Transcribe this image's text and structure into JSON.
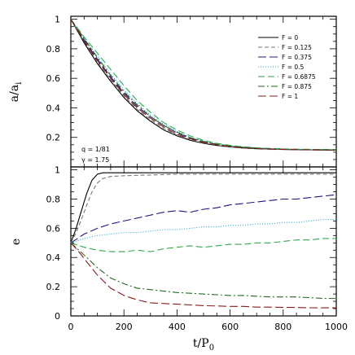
{
  "chart_data": [
    {
      "type": "line",
      "panel": "top",
      "ylabel": "a/a_i",
      "xlabel": "",
      "xlim": [
        0,
        1000
      ],
      "ylim": [
        0,
        1.02
      ],
      "yticks": [
        "0.2",
        "0.4",
        "0.6",
        "0.8",
        "1"
      ],
      "ytick_values": [
        0.2,
        0.4,
        0.6,
        0.8,
        1.0
      ],
      "annotations": [
        "q = 1/81",
        "γ = 1.75"
      ],
      "legend_position": "top-right",
      "series": [
        {
          "name": "F = 0",
          "color": "#000000",
          "dash": "solid",
          "x": [
            0,
            50,
            100,
            150,
            200,
            250,
            300,
            350,
            400,
            450,
            500,
            550,
            600,
            650,
            700,
            750,
            800,
            850,
            900,
            950,
            1000
          ],
          "y": [
            1.0,
            0.84,
            0.7,
            0.58,
            0.47,
            0.38,
            0.31,
            0.25,
            0.21,
            0.18,
            0.16,
            0.145,
            0.135,
            0.128,
            0.123,
            0.12,
            0.118,
            0.116,
            0.115,
            0.114,
            0.113
          ]
        },
        {
          "name": "F = 0.125",
          "color": "#777777",
          "dash": "5,3",
          "x": [
            0,
            50,
            100,
            150,
            200,
            250,
            300,
            350,
            400,
            450,
            500,
            550,
            600,
            650,
            700,
            750,
            800,
            850,
            900,
            950,
            1000
          ],
          "y": [
            1.0,
            0.85,
            0.71,
            0.59,
            0.48,
            0.39,
            0.32,
            0.26,
            0.215,
            0.185,
            0.163,
            0.147,
            0.136,
            0.129,
            0.124,
            0.121,
            0.119,
            0.117,
            0.116,
            0.115,
            0.114
          ]
        },
        {
          "name": "F = 0.375",
          "color": "#1a1a80",
          "dash": "10,4",
          "x": [
            0,
            50,
            100,
            150,
            200,
            250,
            300,
            350,
            400,
            450,
            500,
            550,
            600,
            650,
            700,
            750,
            800,
            850,
            900,
            950,
            1000
          ],
          "y": [
            1.0,
            0.86,
            0.73,
            0.61,
            0.5,
            0.41,
            0.34,
            0.28,
            0.23,
            0.195,
            0.17,
            0.152,
            0.14,
            0.132,
            0.126,
            0.122,
            0.12,
            0.118,
            0.117,
            0.116,
            0.115
          ]
        },
        {
          "name": "F = 0.5",
          "color": "#22a8c8",
          "dash": "1,2",
          "x": [
            0,
            50,
            100,
            150,
            200,
            250,
            300,
            350,
            400,
            450,
            500,
            550,
            600,
            650,
            700,
            750,
            800,
            850,
            900,
            950,
            1000
          ],
          "y": [
            1.0,
            0.87,
            0.75,
            0.63,
            0.52,
            0.43,
            0.35,
            0.29,
            0.24,
            0.2,
            0.175,
            0.156,
            0.143,
            0.134,
            0.128,
            0.124,
            0.121,
            0.119,
            0.118,
            0.117,
            0.116
          ]
        },
        {
          "name": "F = 0.6875",
          "color": "#2ea84a",
          "dash": "8,4",
          "x": [
            0,
            50,
            100,
            150,
            200,
            250,
            300,
            350,
            400,
            450,
            500,
            550,
            600,
            650,
            700,
            750,
            800,
            850,
            900,
            950,
            1000
          ],
          "y": [
            1.0,
            0.88,
            0.77,
            0.66,
            0.55,
            0.45,
            0.37,
            0.3,
            0.25,
            0.21,
            0.18,
            0.16,
            0.146,
            0.136,
            0.129,
            0.125,
            0.122,
            0.12,
            0.119,
            0.118,
            0.117
          ]
        },
        {
          "name": "F = 0.875",
          "color": "#1f6b1f",
          "dash": "8,3,2,3",
          "x": [
            0,
            50,
            100,
            150,
            200,
            250,
            300,
            350,
            400,
            450,
            500,
            550,
            600,
            650,
            700,
            750,
            800,
            850,
            900,
            950,
            1000
          ],
          "y": [
            1.0,
            0.87,
            0.74,
            0.62,
            0.51,
            0.42,
            0.34,
            0.28,
            0.235,
            0.198,
            0.172,
            0.154,
            0.141,
            0.133,
            0.127,
            0.123,
            0.12,
            0.118,
            0.117,
            0.116,
            0.115
          ]
        },
        {
          "name": "F = 1",
          "color": "#8b1a1a",
          "dash": "10,4",
          "x": [
            0,
            50,
            100,
            150,
            200,
            250,
            300,
            350,
            400,
            450,
            500,
            550,
            600,
            650,
            700,
            750,
            800,
            850,
            900,
            950,
            1000
          ],
          "y": [
            1.0,
            0.85,
            0.72,
            0.6,
            0.49,
            0.4,
            0.33,
            0.27,
            0.22,
            0.19,
            0.166,
            0.15,
            0.138,
            0.13,
            0.125,
            0.121,
            0.119,
            0.117,
            0.116,
            0.115,
            0.114
          ]
        }
      ]
    },
    {
      "type": "line",
      "panel": "bottom",
      "ylabel": "e",
      "xlabel": "t/P_0",
      "xlim": [
        0,
        1000
      ],
      "ylim": [
        0,
        1.02
      ],
      "xticks": [
        "0",
        "200",
        "400",
        "600",
        "800",
        "1000"
      ],
      "xtick_values": [
        0,
        200,
        400,
        600,
        800,
        1000
      ],
      "yticks": [
        "0",
        "0.2",
        "0.4",
        "0.6",
        "0.8",
        "1"
      ],
      "ytick_values": [
        0,
        0.2,
        0.4,
        0.6,
        0.8,
        1.0
      ],
      "series": [
        {
          "name": "F = 0",
          "color": "#000000",
          "dash": "solid",
          "x": [
            0,
            20,
            40,
            60,
            80,
            100,
            120,
            150,
            200,
            300,
            400,
            500,
            600,
            700,
            800,
            900,
            1000
          ],
          "y": [
            0.5,
            0.6,
            0.72,
            0.84,
            0.93,
            0.97,
            0.98,
            0.98,
            0.98,
            0.98,
            0.98,
            0.98,
            0.98,
            0.98,
            0.98,
            0.98,
            0.98
          ]
        },
        {
          "name": "F = 0.125",
          "color": "#777777",
          "dash": "5,3",
          "x": [
            0,
            20,
            40,
            60,
            80,
            100,
            120,
            150,
            200,
            300,
            400,
            500,
            600,
            700,
            800,
            900,
            1000
          ],
          "y": [
            0.5,
            0.57,
            0.66,
            0.76,
            0.85,
            0.91,
            0.94,
            0.955,
            0.96,
            0.965,
            0.97,
            0.97,
            0.97,
            0.97,
            0.97,
            0.97,
            0.97
          ]
        },
        {
          "name": "F = 0.375",
          "color": "#1a1a80",
          "dash": "10,4",
          "x": [
            0,
            50,
            100,
            150,
            200,
            250,
            300,
            350,
            400,
            450,
            500,
            550,
            600,
            650,
            700,
            750,
            800,
            850,
            900,
            950,
            1000
          ],
          "y": [
            0.5,
            0.56,
            0.6,
            0.63,
            0.65,
            0.67,
            0.69,
            0.71,
            0.72,
            0.71,
            0.73,
            0.74,
            0.76,
            0.77,
            0.78,
            0.79,
            0.8,
            0.8,
            0.81,
            0.82,
            0.83
          ]
        },
        {
          "name": "F = 0.5",
          "color": "#22a8c8",
          "dash": "1,2",
          "x": [
            0,
            50,
            100,
            150,
            200,
            250,
            300,
            350,
            400,
            450,
            500,
            550,
            600,
            650,
            700,
            750,
            800,
            850,
            900,
            950,
            1000
          ],
          "y": [
            0.5,
            0.53,
            0.55,
            0.56,
            0.57,
            0.57,
            0.58,
            0.59,
            0.59,
            0.6,
            0.61,
            0.61,
            0.62,
            0.62,
            0.63,
            0.63,
            0.64,
            0.64,
            0.65,
            0.66,
            0.66
          ]
        },
        {
          "name": "F = 0.6875",
          "color": "#2ea84a",
          "dash": "8,4",
          "x": [
            0,
            50,
            100,
            150,
            200,
            250,
            300,
            350,
            400,
            450,
            500,
            550,
            600,
            650,
            700,
            750,
            800,
            850,
            900,
            950,
            1000
          ],
          "y": [
            0.5,
            0.47,
            0.45,
            0.44,
            0.44,
            0.45,
            0.44,
            0.46,
            0.47,
            0.48,
            0.47,
            0.48,
            0.49,
            0.49,
            0.5,
            0.5,
            0.51,
            0.52,
            0.52,
            0.53,
            0.53
          ]
        },
        {
          "name": "F = 0.875",
          "color": "#1f6b1f",
          "dash": "8,3,2,3",
          "x": [
            0,
            30,
            60,
            100,
            150,
            200,
            250,
            300,
            350,
            400,
            450,
            500,
            550,
            600,
            650,
            700,
            750,
            800,
            850,
            900,
            950,
            1000
          ],
          "y": [
            0.5,
            0.45,
            0.4,
            0.33,
            0.26,
            0.22,
            0.19,
            0.18,
            0.17,
            0.16,
            0.155,
            0.15,
            0.145,
            0.14,
            0.14,
            0.135,
            0.13,
            0.13,
            0.13,
            0.125,
            0.12,
            0.12
          ]
        },
        {
          "name": "F = 1",
          "color": "#8b1a1a",
          "dash": "10,4",
          "x": [
            0,
            30,
            60,
            100,
            150,
            200,
            250,
            300,
            350,
            400,
            450,
            500,
            550,
            600,
            650,
            700,
            750,
            800,
            850,
            900,
            950,
            1000
          ],
          "y": [
            0.5,
            0.44,
            0.37,
            0.28,
            0.19,
            0.14,
            0.11,
            0.09,
            0.085,
            0.08,
            0.075,
            0.07,
            0.068,
            0.065,
            0.065,
            0.06,
            0.06,
            0.058,
            0.058,
            0.056,
            0.055,
            0.055
          ]
        }
      ]
    }
  ]
}
